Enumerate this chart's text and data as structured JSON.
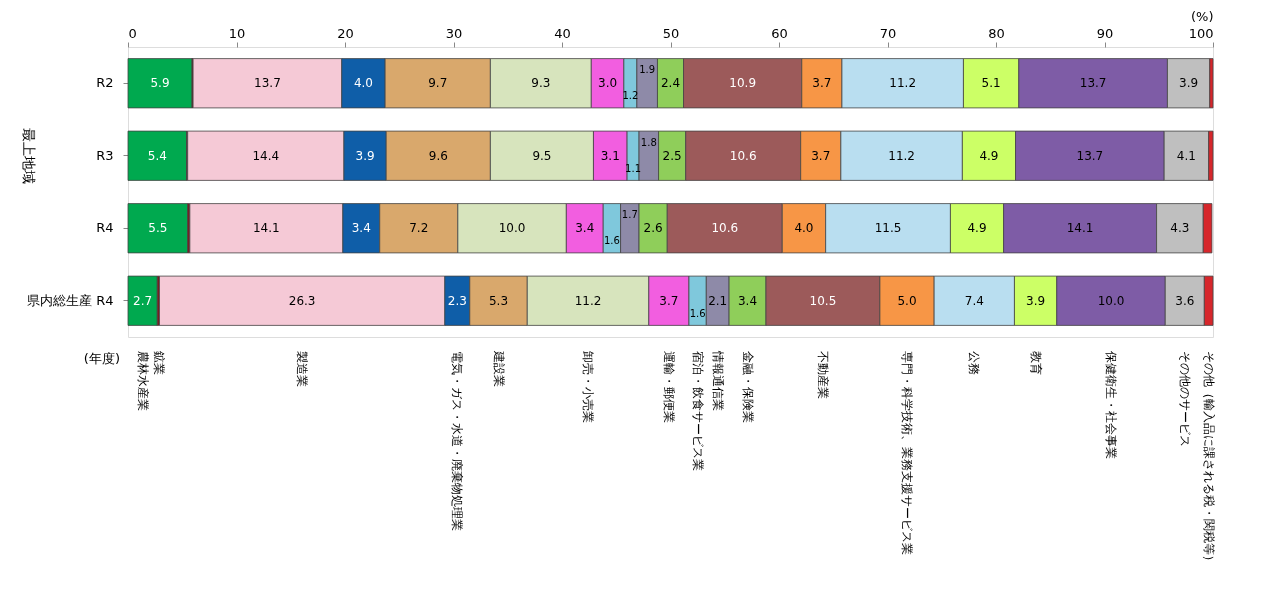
{
  "chart_data": {
    "type": "bar",
    "orientation": "horizontal",
    "stacked": true,
    "xlabel": "(%)",
    "xlim": [
      0,
      100
    ],
    "xticks": [
      0,
      10,
      20,
      30,
      40,
      50,
      60,
      70,
      80,
      90,
      100
    ],
    "grid": false,
    "categories": [
      "R2",
      "R3",
      "R4",
      "県内総生産 R4"
    ],
    "annotations": [
      "最上地域",
      "(年度)"
    ],
    "series": [
      {
        "name": "農林水産業",
        "color": "#00a94f",
        "values": [
          5.9,
          5.4,
          5.5,
          2.7
        ],
        "value_labels": [
          "5.9",
          "5.4",
          "5.5",
          "2.7"
        ]
      },
      {
        "name": "鉱業",
        "color": "#7b1f1f",
        "values": [
          0.1,
          0.1,
          0.2,
          0.2
        ],
        "value_labels": [
          null,
          null,
          null,
          null
        ]
      },
      {
        "name": "製造業",
        "color": "#f5c9d6",
        "values": [
          13.7,
          14.4,
          14.1,
          26.3
        ],
        "value_labels": [
          "13.7",
          "14.4",
          "14.1",
          "26.3"
        ]
      },
      {
        "name": "電気・ガス・水道・廃棄物処理業",
        "color": "#0f5ea8",
        "values": [
          4.0,
          3.9,
          3.4,
          2.3
        ],
        "value_labels": [
          "4.0",
          "3.9",
          "3.4",
          "2.3"
        ]
      },
      {
        "name": "建設業",
        "color": "#d9a86c",
        "values": [
          9.7,
          9.6,
          7.2,
          5.3
        ],
        "value_labels": [
          "9.7",
          "9.6",
          "7.2",
          "5.3"
        ]
      },
      {
        "name": "卸売・小売業",
        "color": "#d7e4bd",
        "values": [
          9.3,
          9.5,
          10.0,
          11.2
        ],
        "value_labels": [
          "9.3",
          "9.5",
          "10.0",
          "11.2"
        ]
      },
      {
        "name": "運輸・郵便業",
        "color": "#f25ee0",
        "values": [
          3.0,
          3.1,
          3.4,
          3.7
        ],
        "value_labels": [
          "3.0",
          "3.1",
          "3.4",
          "3.7"
        ]
      },
      {
        "name": "宿泊・飲食サービス業",
        "color": "#7fc8dc",
        "values": [
          1.2,
          1.1,
          1.6,
          1.6
        ],
        "value_labels": [
          "1.2",
          "1.1",
          "1.6",
          "1.6"
        ]
      },
      {
        "name": "情報通信業",
        "color": "#8e8aa8",
        "values": [
          1.9,
          1.8,
          1.7,
          2.1
        ],
        "value_labels": [
          "1.9",
          "1.8",
          "1.7",
          "2.1"
        ]
      },
      {
        "name": "金融・保険業",
        "color": "#8fce5a",
        "values": [
          2.4,
          2.5,
          2.6,
          3.4
        ],
        "value_labels": [
          "2.4",
          "2.5",
          "2.6",
          "3.4"
        ]
      },
      {
        "name": "不動産業",
        "color": "#9c5a5a",
        "values": [
          10.9,
          10.6,
          10.6,
          10.5
        ],
        "value_labels": [
          "10.9",
          "10.6",
          "10.6",
          "10.5"
        ]
      },
      {
        "name": "専門・科学技術、業務支援サービス業",
        "color": "#f79646",
        "values": [
          3.7,
          3.7,
          4.0,
          5.0
        ],
        "value_labels": [
          "3.7",
          "3.7",
          "4.0",
          "5.0"
        ]
      },
      {
        "name": "公務",
        "color": "#b9def0",
        "values": [
          11.2,
          11.2,
          11.5,
          7.4
        ],
        "value_labels": [
          "11.2",
          "11.2",
          "11.5",
          "7.4"
        ]
      },
      {
        "name": "教育",
        "color": "#ccff66",
        "values": [
          5.1,
          4.9,
          4.9,
          3.9
        ],
        "value_labels": [
          "5.1",
          "4.9",
          "4.9",
          "3.9"
        ]
      },
      {
        "name": "保健衛生・社会事業",
        "color": "#7e5ca6",
        "values": [
          13.7,
          13.7,
          14.1,
          10.0
        ],
        "value_labels": [
          "13.7",
          "13.7",
          "14.1",
          "10.0"
        ]
      },
      {
        "name": "その他のサービス",
        "color": "#bfbfbf",
        "values": [
          3.9,
          4.1,
          4.3,
          3.6
        ],
        "value_labels": [
          "3.9",
          "4.1",
          "4.3",
          "3.6"
        ]
      },
      {
        "name": "その他（輸入品に課される税・関税等）",
        "color": "#d6262b",
        "values": [
          0.3,
          0.4,
          0.8,
          0.8
        ],
        "value_labels": [
          null,
          null,
          null,
          null
        ]
      }
    ]
  }
}
